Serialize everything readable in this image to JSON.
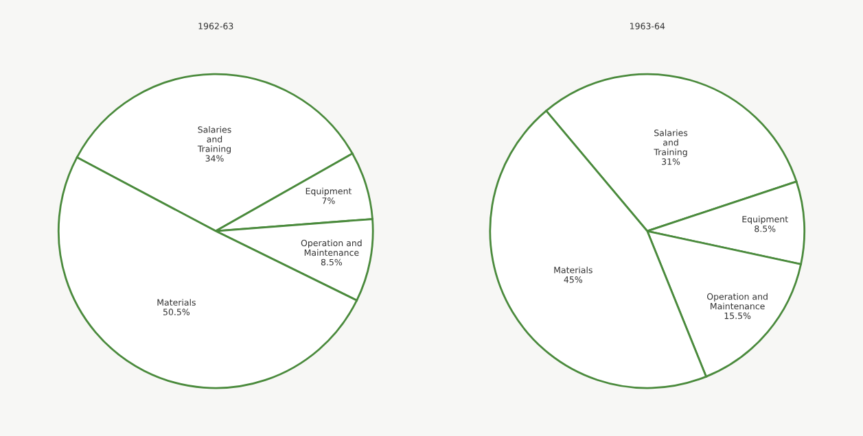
{
  "chart_data": [
    {
      "type": "pie",
      "title": "1962-63",
      "categories": [
        "Salaries\nand\nTraining",
        "Equipment",
        "Operation and\nMaintenance",
        "Materials"
      ],
      "values": [
        34,
        7,
        8.5,
        50.5
      ],
      "value_labels": [
        "34%",
        "7%",
        "8.5%",
        "50.5%"
      ],
      "colors": [
        "#ffffff",
        "#ffffff",
        "#ffffff",
        "#ffffff"
      ]
    },
    {
      "type": "pie",
      "title": "1963-64",
      "categories": [
        "Salaries\nand\nTraining",
        "Equipment",
        "Operation and\nMaintenance",
        "Materials"
      ],
      "values": [
        31,
        8.5,
        15.5,
        45
      ],
      "value_labels": [
        "31%",
        "8.5%",
        "15.5%",
        "45%"
      ],
      "colors": [
        "#ffffff",
        "#ffffff",
        "#ffffff",
        "#ffffff"
      ]
    }
  ]
}
